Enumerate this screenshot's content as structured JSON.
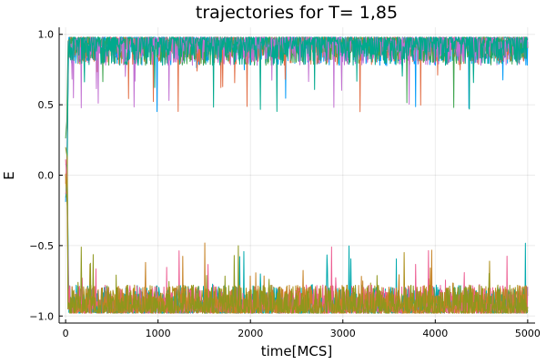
{
  "chart_data": {
    "type": "line",
    "title": "trajectories for T= 1,85",
    "xlabel": "time[MCS]",
    "ylabel": "E",
    "xlim": [
      -70,
      5080
    ],
    "ylim": [
      -1.05,
      1.05
    ],
    "xticks": [
      0,
      1000,
      2000,
      3000,
      4000,
      5000
    ],
    "yticks": [
      -1.0,
      -0.5,
      0.0,
      0.5,
      1.0
    ],
    "ytick_labels": [
      "−1.0",
      "−0.5",
      "0.0",
      "0.5",
      "1.0"
    ],
    "xtick_labels": [
      "0",
      "1000",
      "2000",
      "3000",
      "4000",
      "5000"
    ],
    "grid": true,
    "legend": "none",
    "colors": [
      "#009af9",
      "#e26f46",
      "#3da44d",
      "#c271d2",
      "#ac8e18",
      "#00a9ad",
      "#ed5e93",
      "#c68225",
      "#00a98d",
      "#8e971d"
    ],
    "series": [
      {
        "regime": "upper",
        "color": "#009af9"
      },
      {
        "regime": "upper",
        "color": "#e26f46"
      },
      {
        "regime": "upper",
        "color": "#3da44d"
      },
      {
        "regime": "upper",
        "color": "#c271d2"
      },
      {
        "regime": "upper",
        "color": "#00a98d"
      },
      {
        "regime": "lower",
        "color": "#ac8e18"
      },
      {
        "regime": "lower",
        "color": "#00a9ad"
      },
      {
        "regime": "lower",
        "color": "#ed5e93"
      },
      {
        "regime": "lower",
        "color": "#c68225"
      },
      {
        "regime": "lower",
        "color": "#8e971d"
      }
    ],
    "upper_band": [
      0.8,
      1.0
    ],
    "lower_band": [
      -1.0,
      -0.8
    ],
    "x_end": 5000
  }
}
